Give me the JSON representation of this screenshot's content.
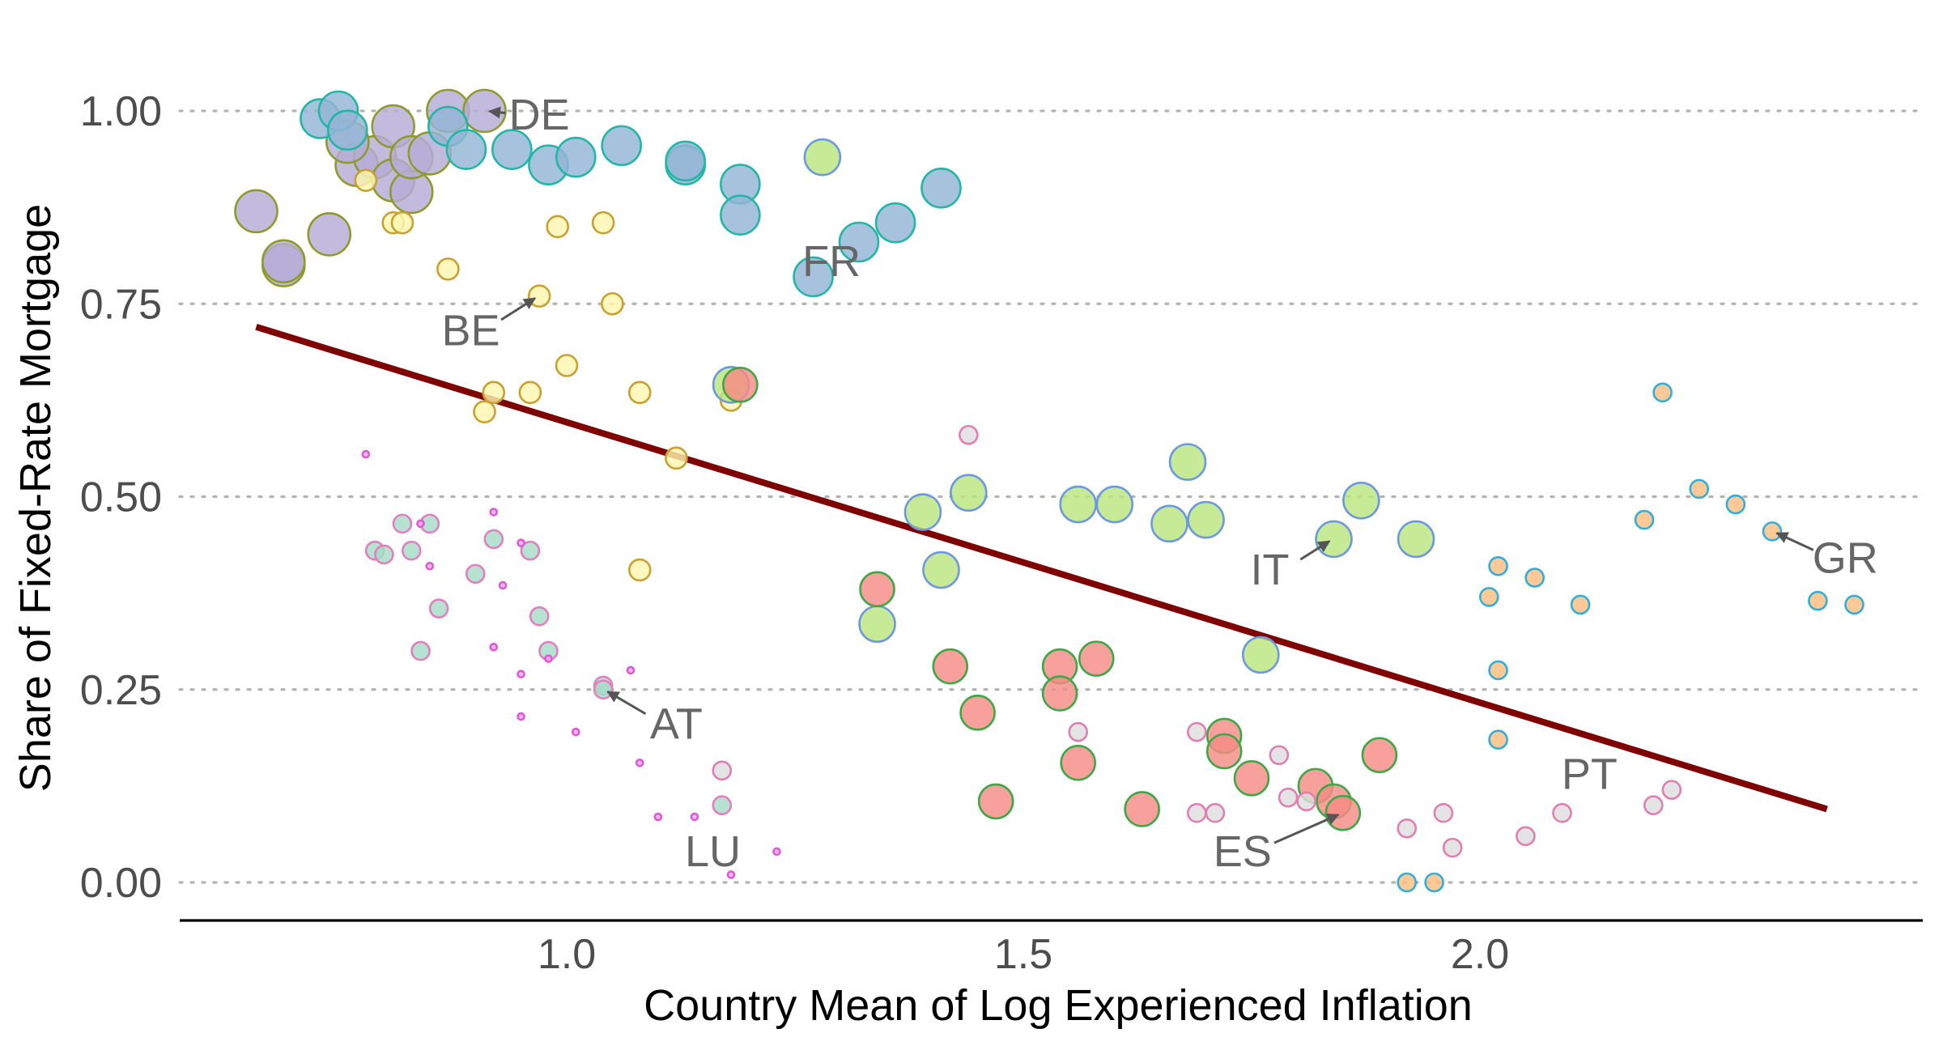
{
  "chart_data": {
    "type": "scatter",
    "xlabel": "Country Mean of Log Experienced Inflation",
    "ylabel": "Share of Fixed-Rate Mortgage",
    "xlim": [
      0.58,
      2.5
    ],
    "ylim": [
      -0.05,
      1.05
    ],
    "x_ticks": [
      {
        "value": 1.0,
        "label": "1.0"
      },
      {
        "value": 1.5,
        "label": "1.5"
      },
      {
        "value": 2.0,
        "label": "2.0"
      }
    ],
    "y_ticks": [
      {
        "value": 0.0,
        "label": "0.00"
      },
      {
        "value": 0.25,
        "label": "0.25"
      },
      {
        "value": 0.5,
        "label": "0.50"
      },
      {
        "value": 0.75,
        "label": "0.75"
      },
      {
        "value": 1.0,
        "label": "1.00"
      }
    ],
    "grid": "horizontal dotted",
    "legend": "none",
    "fit_line": {
      "x": [
        0.66,
        2.38
      ],
      "y": [
        0.72,
        0.095
      ],
      "color": "#7f0000"
    },
    "series": [
      {
        "fill": "#b4acd6",
        "stroke": "#8f9a2c",
        "size": 26,
        "points": [
          [
            0.66,
            0.87
          ],
          [
            0.69,
            0.8
          ],
          [
            0.69,
            0.805
          ],
          [
            0.74,
            0.84
          ],
          [
            0.77,
            0.93
          ],
          [
            0.79,
            0.94
          ],
          [
            0.81,
            0.91
          ],
          [
            0.81,
            0.98
          ],
          [
            0.83,
            0.895
          ],
          [
            0.83,
            0.94
          ],
          [
            0.85,
            0.945
          ],
          [
            0.87,
            1.0
          ],
          [
            0.91,
            1.0
          ],
          [
            0.76,
            0.96
          ]
        ]
      },
      {
        "fill": "#94b4d6",
        "stroke": "#22b6a6",
        "size": 24,
        "points": [
          [
            0.73,
            0.99
          ],
          [
            0.75,
            1.0
          ],
          [
            0.76,
            0.975
          ],
          [
            0.87,
            0.98
          ],
          [
            0.89,
            0.95
          ],
          [
            0.94,
            0.95
          ],
          [
            0.98,
            0.93
          ],
          [
            1.01,
            0.94
          ],
          [
            1.06,
            0.955
          ],
          [
            1.13,
            0.93
          ],
          [
            1.13,
            0.935
          ],
          [
            1.19,
            0.905
          ],
          [
            1.19,
            0.865
          ],
          [
            1.27,
            0.785
          ],
          [
            1.32,
            0.83
          ],
          [
            1.36,
            0.855
          ],
          [
            1.41,
            0.9
          ]
        ]
      },
      {
        "fill": "#fff7b0",
        "stroke": "#c9a032",
        "size": 13,
        "points": [
          [
            0.78,
            0.91
          ],
          [
            0.81,
            0.855
          ],
          [
            0.82,
            0.855
          ],
          [
            0.87,
            0.795
          ],
          [
            0.91,
            0.61
          ],
          [
            0.92,
            0.635
          ],
          [
            0.96,
            0.635
          ],
          [
            0.97,
            0.76
          ],
          [
            0.99,
            0.85
          ],
          [
            1.0,
            0.67
          ],
          [
            1.04,
            0.855
          ],
          [
            1.05,
            0.75
          ],
          [
            1.08,
            0.635
          ],
          [
            1.08,
            0.405
          ],
          [
            1.12,
            0.55
          ],
          [
            1.18,
            0.625
          ]
        ]
      },
      {
        "fill": "#b9e57e",
        "stroke": "#6d99e0",
        "size": 22,
        "points": [
          [
            1.18,
            0.645
          ],
          [
            1.28,
            0.94
          ],
          [
            1.34,
            0.335
          ],
          [
            1.39,
            0.48
          ],
          [
            1.41,
            0.405
          ],
          [
            1.44,
            0.505
          ],
          [
            1.56,
            0.49
          ],
          [
            1.6,
            0.49
          ],
          [
            1.66,
            0.465
          ],
          [
            1.68,
            0.545
          ],
          [
            1.7,
            0.47
          ],
          [
            1.76,
            0.295
          ],
          [
            1.84,
            0.445
          ],
          [
            1.87,
            0.495
          ],
          [
            1.93,
            0.445
          ]
        ]
      },
      {
        "fill": "#f78b85",
        "stroke": "#3ea846",
        "size": 21,
        "points": [
          [
            1.19,
            0.645
          ],
          [
            1.34,
            0.38
          ],
          [
            1.42,
            0.28
          ],
          [
            1.45,
            0.22
          ],
          [
            1.47,
            0.105
          ],
          [
            1.54,
            0.28
          ],
          [
            1.54,
            0.245
          ],
          [
            1.56,
            0.155
          ],
          [
            1.58,
            0.29
          ],
          [
            1.63,
            0.095
          ],
          [
            1.72,
            0.19
          ],
          [
            1.72,
            0.17
          ],
          [
            1.75,
            0.135
          ],
          [
            1.82,
            0.125
          ],
          [
            1.84,
            0.105
          ],
          [
            1.85,
            0.09
          ],
          [
            1.89,
            0.165
          ]
        ]
      },
      {
        "fill": "#a6dcc8",
        "stroke": "#e280bf",
        "size": 11,
        "points": [
          [
            0.79,
            0.43
          ],
          [
            0.8,
            0.425
          ],
          [
            0.82,
            0.465
          ],
          [
            0.83,
            0.43
          ],
          [
            0.85,
            0.465
          ],
          [
            0.86,
            0.355
          ],
          [
            0.84,
            0.3
          ],
          [
            0.9,
            0.4
          ],
          [
            0.92,
            0.445
          ],
          [
            0.96,
            0.43
          ],
          [
            0.97,
            0.345
          ],
          [
            0.98,
            0.3
          ],
          [
            1.04,
            0.255
          ],
          [
            1.04,
            0.25
          ],
          [
            1.17,
            0.1
          ]
        ]
      },
      {
        "fill": "#f7a8f2",
        "stroke": "#dd5ad6",
        "size": 4,
        "points": [
          [
            0.78,
            0.555
          ],
          [
            0.84,
            0.465
          ],
          [
            0.85,
            0.41
          ],
          [
            0.92,
            0.48
          ],
          [
            0.95,
            0.44
          ],
          [
            0.93,
            0.385
          ],
          [
            0.92,
            0.305
          ],
          [
            0.95,
            0.27
          ],
          [
            0.98,
            0.29
          ],
          [
            0.95,
            0.215
          ],
          [
            1.01,
            0.195
          ],
          [
            1.07,
            0.275
          ],
          [
            1.08,
            0.155
          ],
          [
            1.1,
            0.085
          ],
          [
            1.14,
            0.085
          ],
          [
            1.18,
            0.01
          ],
          [
            1.23,
            0.04
          ]
        ]
      },
      {
        "fill": "#dedede",
        "stroke": "#e07fb1",
        "size": 11,
        "points": [
          [
            1.44,
            0.58
          ],
          [
            1.17,
            0.145
          ],
          [
            1.56,
            0.195
          ],
          [
            1.69,
            0.195
          ],
          [
            1.69,
            0.09
          ],
          [
            1.71,
            0.09
          ],
          [
            1.78,
            0.165
          ],
          [
            1.79,
            0.11
          ],
          [
            1.81,
            0.105
          ],
          [
            1.92,
            0.07
          ],
          [
            1.96,
            0.09
          ],
          [
            1.97,
            0.045
          ],
          [
            2.05,
            0.06
          ],
          [
            2.09,
            0.09
          ],
          [
            2.19,
            0.1
          ],
          [
            2.21,
            0.12
          ]
        ]
      },
      {
        "fill": "#fbbd80",
        "stroke": "#32aedb",
        "size": 11,
        "points": [
          [
            1.92,
            0.0
          ],
          [
            1.95,
            0.0
          ],
          [
            2.01,
            0.37
          ],
          [
            2.02,
            0.41
          ],
          [
            2.02,
            0.275
          ],
          [
            2.02,
            0.185
          ],
          [
            2.06,
            0.395
          ],
          [
            2.11,
            0.36
          ],
          [
            2.18,
            0.47
          ],
          [
            2.2,
            0.635
          ],
          [
            2.24,
            0.51
          ],
          [
            2.28,
            0.49
          ],
          [
            2.32,
            0.455
          ],
          [
            2.37,
            0.365
          ],
          [
            2.41,
            0.36
          ]
        ]
      }
    ],
    "annotations": [
      {
        "text": "DE",
        "x": 0.91,
        "y": 1.0,
        "label_x": 0.97,
        "label_y": 0.995
      },
      {
        "text": "FR",
        "x": 1.27,
        "y": 0.785,
        "label_x": 1.29,
        "label_y": 0.805
      },
      {
        "text": "BE",
        "x": 0.97,
        "y": 0.76,
        "label_x": 0.895,
        "label_y": 0.715
      },
      {
        "text": "IT",
        "x": 1.84,
        "y": 0.445,
        "label_x": 1.77,
        "label_y": 0.405
      },
      {
        "text": "GR",
        "x": 2.32,
        "y": 0.455,
        "label_x": 2.4,
        "label_y": 0.42
      },
      {
        "text": "AT",
        "x": 1.04,
        "y": 0.25,
        "label_x": 1.12,
        "label_y": 0.205
      },
      {
        "text": "PT",
        "x": 2.09,
        "y": 0.09,
        "label_x": 2.12,
        "label_y": 0.14
      },
      {
        "text": "ES",
        "x": 1.85,
        "y": 0.09,
        "label_x": 1.74,
        "label_y": 0.04
      },
      {
        "text": "LU",
        "x": 1.14,
        "y": 0.085,
        "label_x": 1.16,
        "label_y": 0.04
      }
    ]
  }
}
